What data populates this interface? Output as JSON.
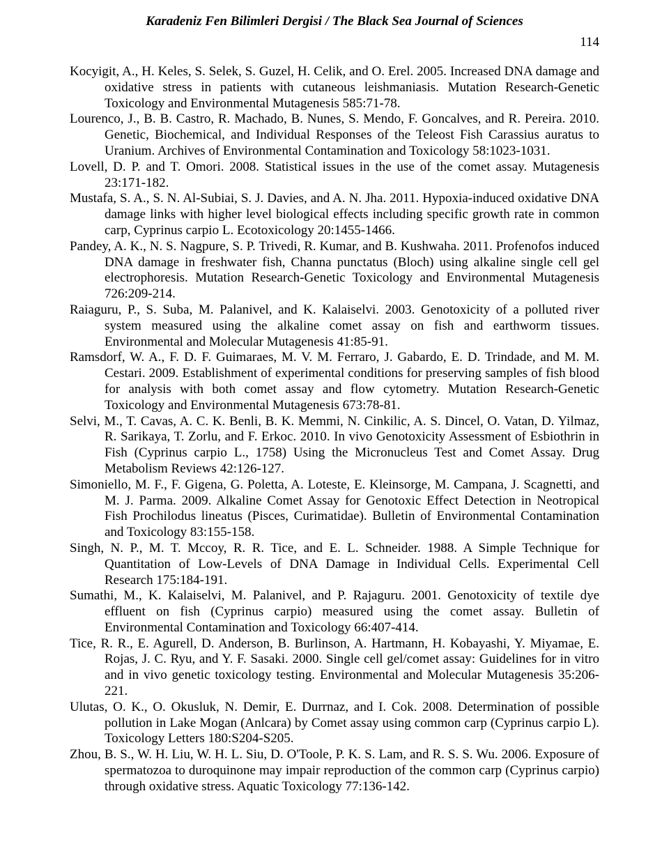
{
  "header": {
    "journal_title": "Karadeniz Fen Bilimleri Dergisi / The Black Sea Journal of Sciences",
    "page_number": "114"
  },
  "references": [
    "Kocyigit, A., H. Keles, S. Selek, S. Guzel, H. Celik, and O. Erel. 2005. Increased DNA damage and oxidative stress in patients with cutaneous leishmaniasis. Mutation Research-Genetic Toxicology and Environmental Mutagenesis 585:71-78.",
    "Lourenco, J., B. B. Castro, R. Machado, B. Nunes, S. Mendo, F. Goncalves, and R. Pereira. 2010. Genetic, Biochemical, and Individual Responses of the Teleost Fish Carassius auratus to Uranium. Archives of Environmental Contamination and Toxicology 58:1023-1031.",
    "Lovell, D. P. and T. Omori. 2008. Statistical issues in the use of the comet assay. Mutagenesis 23:171-182.",
    "Mustafa, S. A., S. N. Al-Subiai, S. J. Davies, and A. N. Jha. 2011. Hypoxia-induced oxidative DNA damage links with higher level biological effects including specific growth rate in common carp, Cyprinus carpio L. Ecotoxicology 20:1455-1466.",
    "Pandey, A. K., N. S. Nagpure, S. P. Trivedi, R. Kumar, and B. Kushwaha. 2011. Profenofos induced DNA damage in freshwater fish, Channa punctatus (Bloch) using alkaline single cell gel electrophoresis. Mutation Research-Genetic Toxicology and Environmental Mutagenesis 726:209-214.",
    "Raiaguru, P., S. Suba, M. Palanivel, and K. Kalaiselvi. 2003. Genotoxicity of a polluted river system measured using the alkaline comet assay on fish and earthworm tissues. Environmental and Molecular Mutagenesis 41:85-91.",
    "Ramsdorf, W. A., F. D. F. Guimaraes, M. V. M. Ferraro, J. Gabardo, E. D. Trindade, and M. M. Cestari. 2009. Establishment of experimental conditions for preserving samples of fish blood for analysis with both comet assay and flow cytometry. Mutation Research-Genetic Toxicology and Environmental Mutagenesis 673:78-81.",
    "Selvi, M., T. Cavas, A. C. K. Benli, B. K. Memmi, N. Cinkilic, A. S. Dincel, O. Vatan, D. Yilmaz, R. Sarikaya, T. Zorlu, and F. Erkoc. 2010. In vivo Genotoxicity Assessment of Esbiothrin in Fish (Cyprinus carpio L., 1758) Using the Micronucleus Test and Comet Assay. Drug Metabolism Reviews 42:126-127.",
    "Simoniello, M. F., F. Gigena, G. Poletta, A. Loteste, E. Kleinsorge, M. Campana, J. Scagnetti, and M. J. Parma. 2009. Alkaline Comet Assay for Genotoxic Effect Detection in Neotropical Fish Prochilodus lineatus (Pisces, Curimatidae). Bulletin of Environmental Contamination and Toxicology 83:155-158.",
    "Singh, N. P., M. T. Mccoy, R. R. Tice, and E. L. Schneider. 1988. A Simple Technique for Quantitation of Low-Levels of DNA Damage in Individual Cells. Experimental Cell Research 175:184-191.",
    "Sumathi, M., K. Kalaiselvi, M. Palanivel, and P. Rajaguru. 2001. Genotoxicity of textile dye effluent on fish (Cyprinus carpio) measured using the comet assay. Bulletin of Environmental Contamination and Toxicology 66:407-414.",
    "Tice, R. R., E. Agurell, D. Anderson, B. Burlinson, A. Hartmann, H. Kobayashi, Y. Miyamae, E. Rojas, J. C. Ryu, and Y. F. Sasaki. 2000. Single cell gel/comet assay: Guidelines for in vitro and in vivo genetic toxicology testing. Environmental and Molecular Mutagenesis 35:206-221.",
    "Ulutas, O. K., O. Okusluk, N. Demir, E. Durrnaz, and I. Cok. 2008. Determination of possible pollution in Lake Mogan (Anlcara) by Comet assay using common carp (Cyprinus carpio L). Toxicology Letters 180:S204-S205.",
    "Zhou, B. S., W. H. Liu, W. H. L. Siu, D. O'Toole, P. K. S. Lam, and R. S. S. Wu. 2006. Exposure of spermatozoa to duroquinone may impair reproduction of the common carp (Cyprinus carpio) through oxidative stress. Aquatic Toxicology 77:136-142."
  ]
}
